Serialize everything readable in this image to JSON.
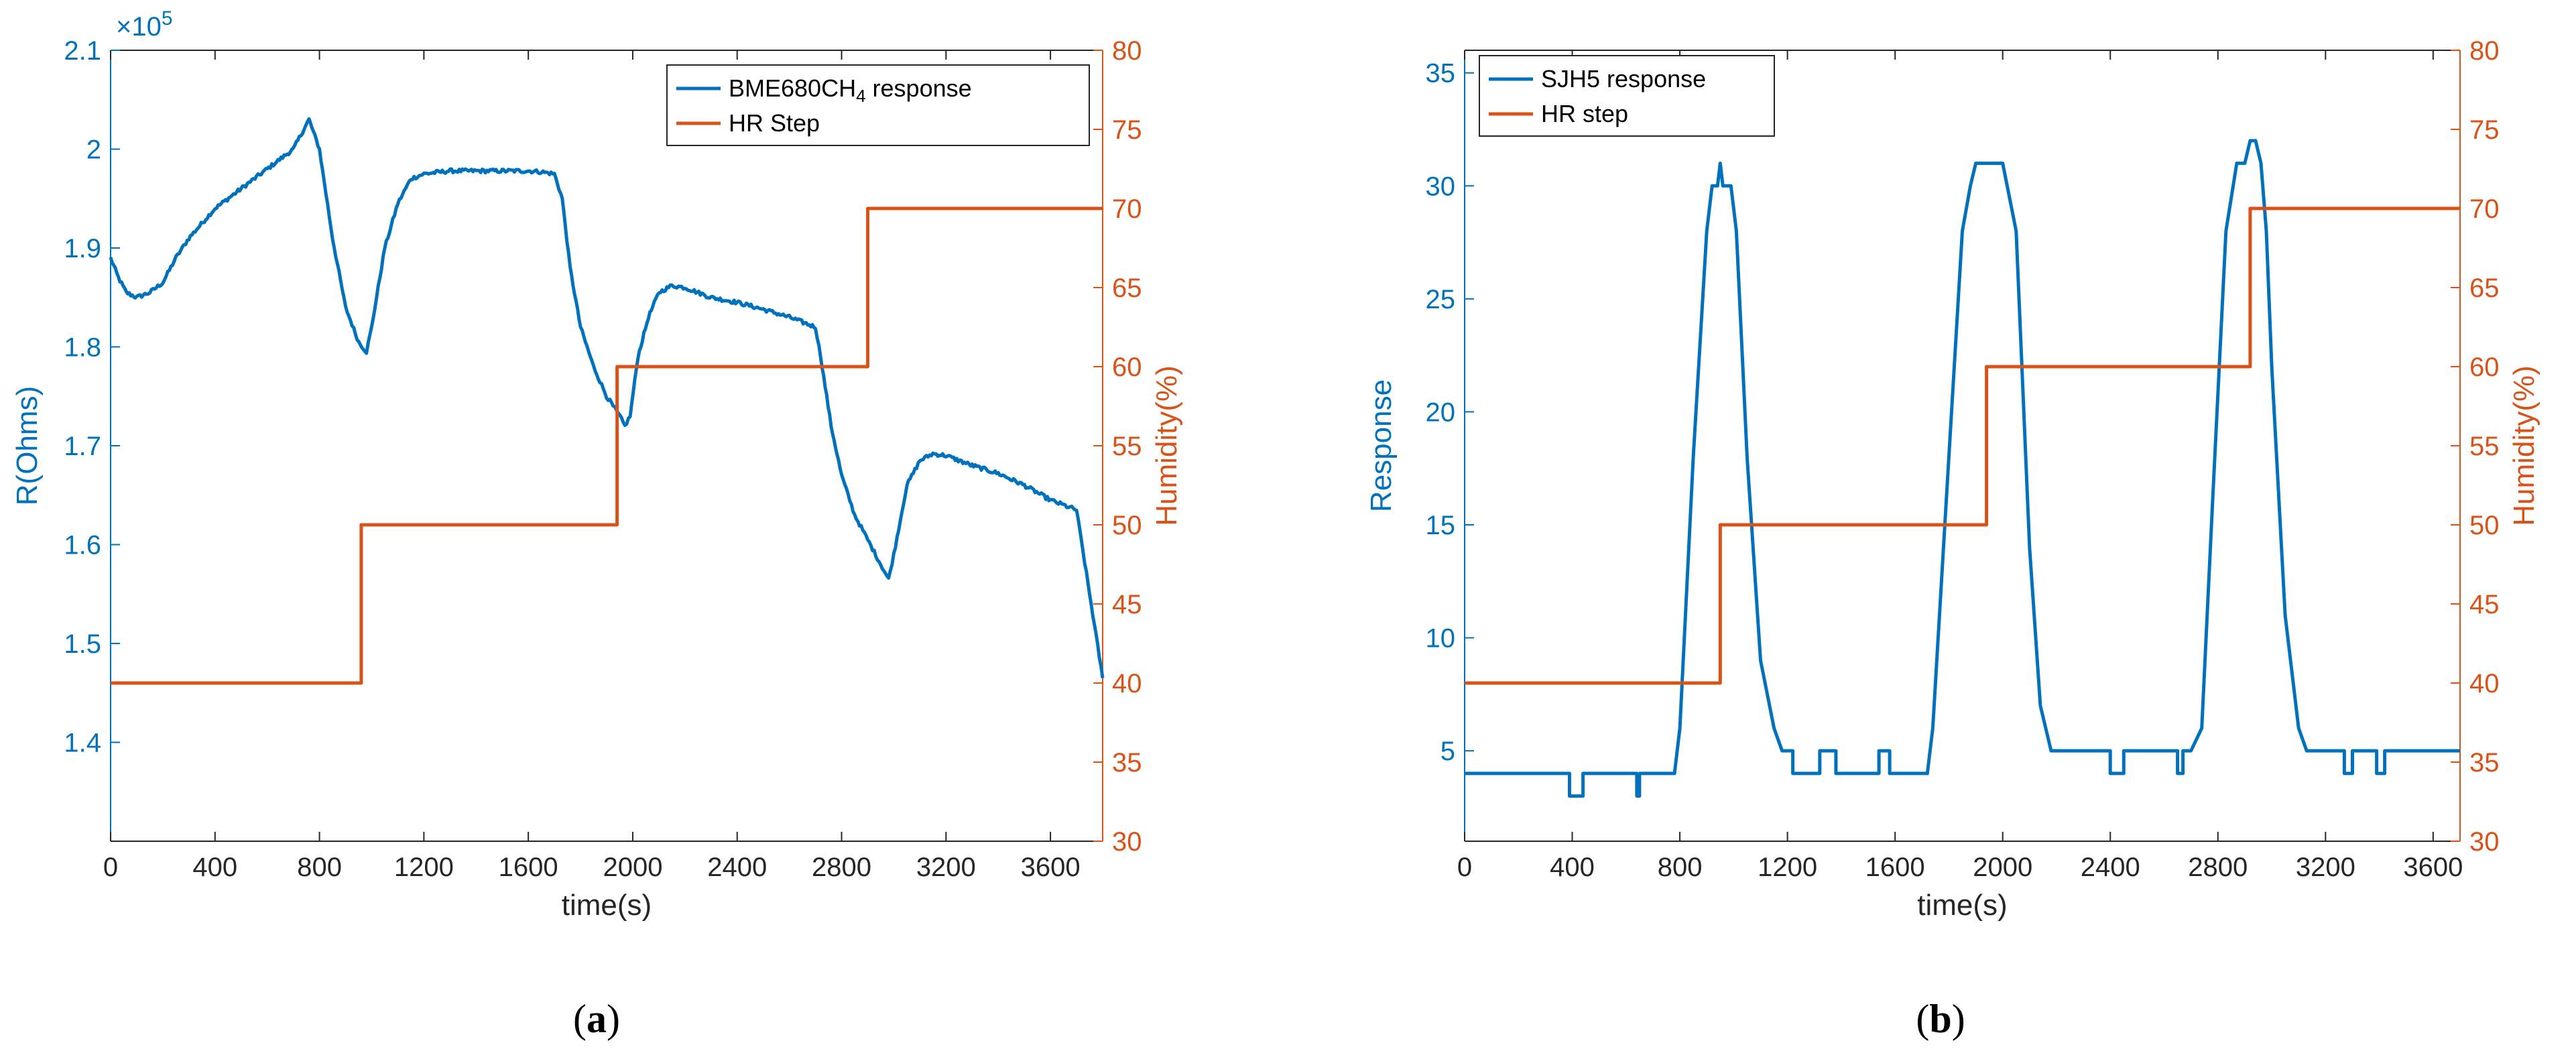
{
  "colors": {
    "series": "#0072BD",
    "humidity": "#D95319",
    "axis": "#262626"
  },
  "chart_data": [
    {
      "type": "line",
      "panel": "a",
      "panel_label_prefix": "(",
      "panel_label_letter": "a",
      "panel_label_suffix": ")",
      "xlabel": "time(s)",
      "ylabel_left": "R(Ohms)",
      "ylabel_right": "Humidity(%)",
      "left_scale_exponent": "×10",
      "left_scale_power": "5",
      "xlim": [
        0,
        3800
      ],
      "ylim_left": [
        1.3,
        2.1
      ],
      "ylim_right": [
        30,
        80
      ],
      "xticks": [
        0,
        400,
        800,
        1200,
        1600,
        2000,
        2400,
        2800,
        3200,
        3600
      ],
      "xtick_labels": [
        "0",
        "400",
        "800",
        "1200",
        "1600",
        "2000",
        "2400",
        "2800",
        "3200",
        "3600"
      ],
      "yticks_left": [
        1.4,
        1.5,
        1.6,
        1.7,
        1.8,
        1.9,
        2.0,
        2.1
      ],
      "ytick_labels_left": [
        "1.4",
        "1.5",
        "1.6",
        "1.7",
        "1.8",
        "1.9",
        "2",
        "2.1"
      ],
      "yticks_right": [
        30,
        35,
        40,
        45,
        50,
        55,
        60,
        65,
        70,
        75,
        80
      ],
      "ytick_labels_right": [
        "30",
        "35",
        "40",
        "45",
        "50",
        "55",
        "60",
        "65",
        "70",
        "75",
        "80"
      ],
      "legend": {
        "placement": "top-right",
        "entries": [
          "BME680CH4 response",
          "HR Step"
        ],
        "entry1_base": "BME680CH",
        "entry1_sub": "4",
        "entry1_tail": " response",
        "entry2": "HR Step"
      },
      "series": [
        {
          "name": "BME680CH4 response",
          "axis": "left",
          "noise": 0.004,
          "x": [
            0,
            30,
            60,
            100,
            150,
            200,
            250,
            300,
            400,
            500,
            600,
            700,
            740,
            760,
            800,
            850,
            900,
            950,
            980,
            1000,
            1050,
            1100,
            1150,
            1200,
            1300,
            1400,
            1500,
            1600,
            1650,
            1700,
            1730,
            1760,
            1800,
            1850,
            1900,
            1950,
            1970,
            1990,
            2020,
            2060,
            2100,
            2150,
            2200,
            2300,
            2400,
            2500,
            2600,
            2700,
            2720,
            2760,
            2800,
            2850,
            2900,
            2950,
            2980,
            3000,
            3050,
            3100,
            3150,
            3200,
            3300,
            3400,
            3500,
            3600,
            3650,
            3700,
            3750,
            3800
          ],
          "y": [
            1.89,
            1.87,
            1.855,
            1.85,
            1.855,
            1.865,
            1.89,
            1.91,
            1.94,
            1.96,
            1.98,
            2.0,
            2.02,
            2.03,
            2.0,
            1.91,
            1.84,
            1.805,
            1.795,
            1.82,
            1.9,
            1.945,
            1.97,
            1.975,
            1.978,
            1.978,
            1.978,
            1.978,
            1.977,
            1.975,
            1.95,
            1.88,
            1.82,
            1.78,
            1.75,
            1.73,
            1.72,
            1.73,
            1.79,
            1.83,
            1.855,
            1.862,
            1.86,
            1.85,
            1.845,
            1.838,
            1.83,
            1.82,
            1.79,
            1.72,
            1.67,
            1.63,
            1.605,
            1.58,
            1.565,
            1.59,
            1.66,
            1.685,
            1.692,
            1.69,
            1.68,
            1.672,
            1.66,
            1.645,
            1.64,
            1.635,
            1.55,
            1.465
          ]
        },
        {
          "name": "HR Step",
          "axis": "right",
          "step": true,
          "x": [
            0,
            960,
            960,
            1940,
            1940,
            2900,
            2900,
            3800
          ],
          "y": [
            40,
            40,
            50,
            50,
            60,
            60,
            70,
            70
          ]
        }
      ]
    },
    {
      "type": "line",
      "panel": "b",
      "panel_label_prefix": "(",
      "panel_label_letter": "b",
      "panel_label_suffix": ")",
      "xlabel": "time(s)",
      "ylabel_left": "Response",
      "ylabel_right": "Humidity(%)",
      "xlim": [
        0,
        3700
      ],
      "ylim_left": [
        1,
        36
      ],
      "ylim_right": [
        30,
        80
      ],
      "xticks": [
        0,
        400,
        800,
        1200,
        1600,
        2000,
        2400,
        2800,
        3200,
        3600
      ],
      "xtick_labels": [
        "0",
        "400",
        "800",
        "1200",
        "1600",
        "2000",
        "2400",
        "2800",
        "3200",
        "3600"
      ],
      "yticks_left": [
        5,
        10,
        15,
        20,
        25,
        30,
        35
      ],
      "ytick_labels_left": [
        "5",
        "10",
        "15",
        "20",
        "25",
        "30",
        "35"
      ],
      "yticks_right": [
        30,
        35,
        40,
        45,
        50,
        55,
        60,
        65,
        70,
        75,
        80
      ],
      "ytick_labels_right": [
        "30",
        "35",
        "40",
        "45",
        "50",
        "55",
        "60",
        "65",
        "70",
        "75",
        "80"
      ],
      "legend": {
        "placement": "top-left",
        "entries": [
          "SJH5 response",
          "HR step"
        ]
      },
      "series": [
        {
          "name": "SJH5 response",
          "axis": "left",
          "x": [
            0,
            390,
            390,
            440,
            440,
            640,
            640,
            650,
            650,
            780,
            800,
            850,
            900,
            920,
            940,
            950,
            960,
            970,
            990,
            1010,
            1050,
            1100,
            1150,
            1180,
            1220,
            1220,
            1320,
            1320,
            1380,
            1380,
            1540,
            1540,
            1580,
            1580,
            1600,
            1720,
            1740,
            1800,
            1850,
            1880,
            1900,
            1950,
            2000,
            2050,
            2100,
            2140,
            2180,
            2400,
            2400,
            2450,
            2450,
            2650,
            2650,
            2670,
            2670,
            2700,
            2740,
            2780,
            2830,
            2870,
            2900,
            2920,
            2940,
            2960,
            2980,
            3000,
            3050,
            3100,
            3130,
            3270,
            3270,
            3300,
            3300,
            3390,
            3390,
            3420,
            3420,
            3700
          ],
          "y": [
            4,
            4,
            3,
            3,
            4,
            4,
            3,
            3,
            4,
            4,
            6,
            18,
            28,
            30,
            30,
            31,
            30,
            30,
            30,
            28,
            18,
            9,
            6,
            5,
            5,
            4,
            4,
            5,
            5,
            4,
            4,
            5,
            5,
            4,
            4,
            4,
            6,
            18,
            28,
            30,
            31,
            31,
            31,
            28,
            14,
            7,
            5,
            5,
            4,
            4,
            5,
            5,
            4,
            4,
            5,
            5,
            6,
            16,
            28,
            31,
            31,
            32,
            32,
            31,
            28,
            22,
            11,
            6,
            5,
            5,
            4,
            4,
            5,
            5,
            4,
            4,
            5,
            5
          ]
        },
        {
          "name": "HR step",
          "axis": "right",
          "step": true,
          "x": [
            0,
            950,
            950,
            1940,
            1940,
            2920,
            2920,
            3700
          ],
          "y": [
            40,
            40,
            50,
            50,
            60,
            60,
            70,
            70
          ]
        }
      ]
    }
  ]
}
